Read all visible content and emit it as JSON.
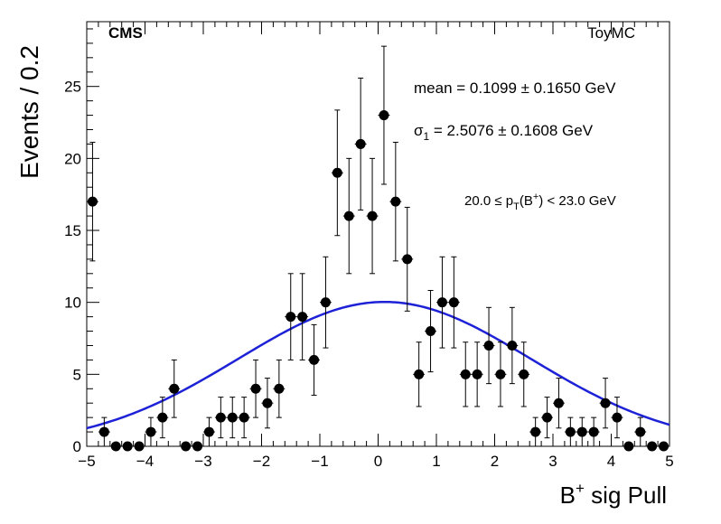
{
  "header": {
    "experiment": "CMS",
    "sample": "ToyMC"
  },
  "annotations": {
    "mean_text": "mean = 0.1099 ± 0.1650 GeV",
    "sigma_prefix": "σ",
    "sigma_sub": "1",
    "sigma_value": " = 2.5076 ± 0.1608 GeV",
    "pt_prefix": "20.0 ≤ p",
    "pt_sub": "T",
    "pt_mid": "(B",
    "pt_sup": "+",
    "pt_suffix": ") < 23.0 GeV"
  },
  "colors": {
    "fit": "#1e22d6",
    "points": "#000000"
  },
  "chart_data": {
    "type": "scatter",
    "title": "",
    "xlabel_base": "B",
    "xlabel_sup": "+",
    "xlabel_rest": " sig Pull",
    "ylabel": "Events / 0.2",
    "xlim": [
      -5,
      5
    ],
    "ylim": [
      0,
      29.5
    ],
    "x_ticks": [
      -5,
      -4,
      -3,
      -2,
      -1,
      0,
      1,
      2,
      3,
      4,
      5
    ],
    "x_tick_labels": [
      "−5",
      "−4",
      "−3",
      "−2",
      "−1",
      "0",
      "1",
      "2",
      "3",
      "4",
      "5"
    ],
    "y_ticks": [
      0,
      5,
      10,
      15,
      20,
      25
    ],
    "y_tick_labels": [
      "0",
      "5",
      "10",
      "15",
      "20",
      "25"
    ],
    "bin_width": 0.2,
    "x": [
      -4.9,
      -4.7,
      -4.5,
      -4.3,
      -4.1,
      -3.9,
      -3.7,
      -3.5,
      -3.3,
      -3.1,
      -2.9,
      -2.7,
      -2.5,
      -2.3,
      -2.1,
      -1.9,
      -1.7,
      -1.5,
      -1.3,
      -1.1,
      -0.9,
      -0.7,
      -0.5,
      -0.3,
      -0.1,
      0.1,
      0.3,
      0.5,
      0.7,
      0.9,
      1.1,
      1.3,
      1.5,
      1.7,
      1.9,
      2.1,
      2.3,
      2.5,
      2.7,
      2.9,
      3.1,
      3.3,
      3.5,
      3.7,
      3.9,
      4.1,
      4.3,
      4.5,
      4.7,
      4.9
    ],
    "y": [
      17,
      1,
      0,
      0,
      0,
      1,
      2,
      4,
      0,
      0,
      1,
      2,
      2,
      2,
      4,
      3,
      4,
      9,
      9,
      6,
      10,
      19,
      16,
      21,
      16,
      23,
      17,
      13,
      5,
      8,
      10,
      10,
      5,
      5,
      7,
      5,
      7,
      5,
      1,
      2,
      3,
      1,
      1,
      1,
      3,
      2,
      0,
      1,
      0,
      0
    ],
    "fit": {
      "name": "Gaussian fit",
      "mean": 0.1099,
      "sigma": 2.5076,
      "amplitude": 10.03
    }
  }
}
